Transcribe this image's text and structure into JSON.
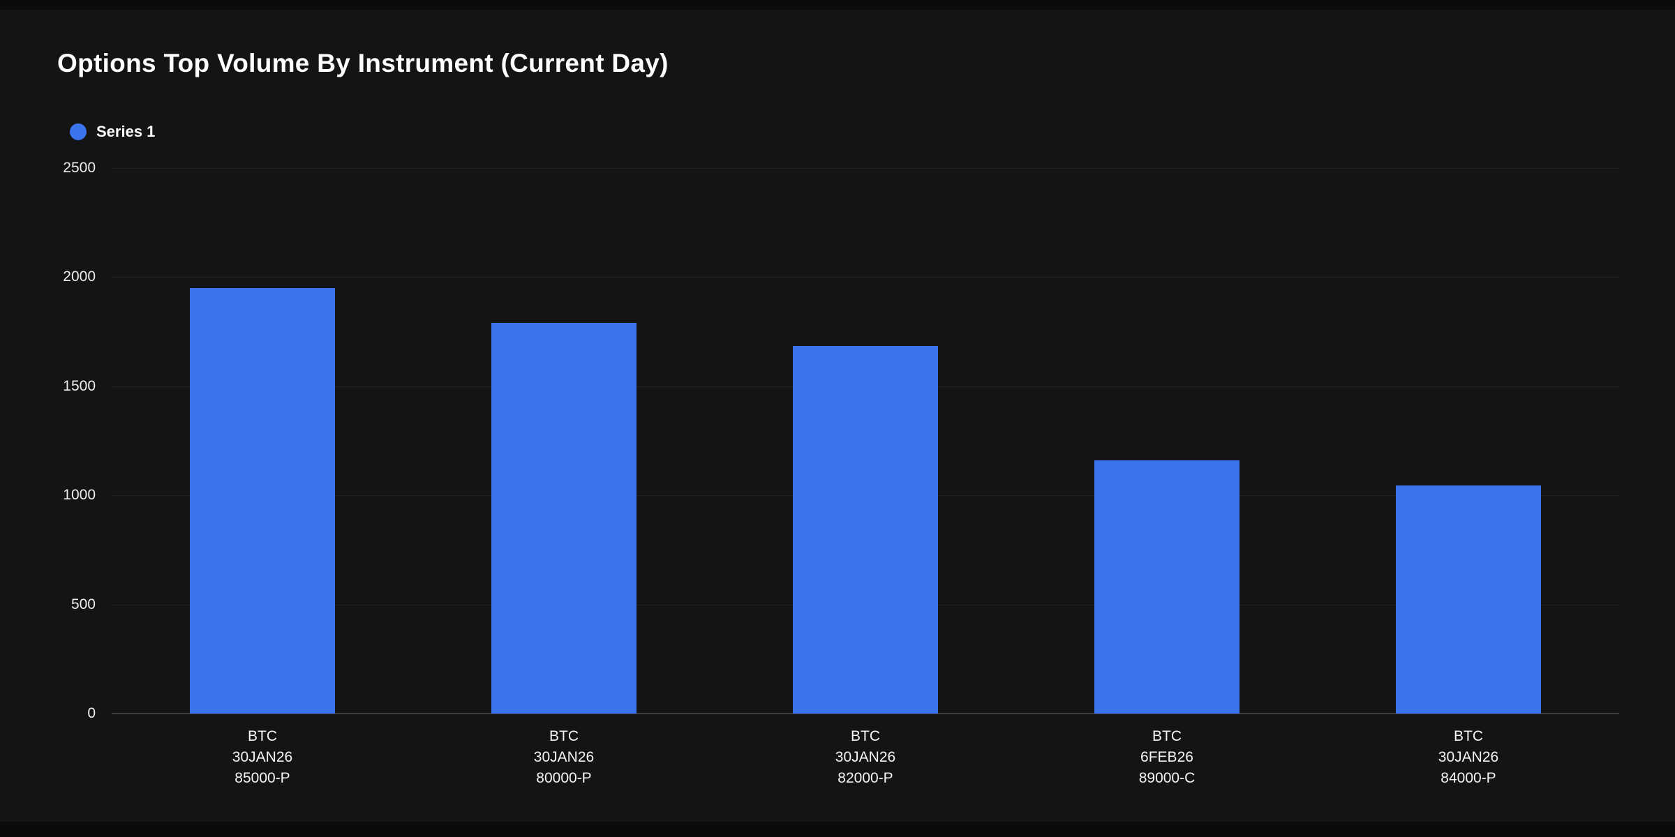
{
  "page": {
    "background": "#0b0b0b",
    "card_background": "#141414"
  },
  "header": {
    "title": "Options Top Volume By Instrument (Current Day)"
  },
  "legend": {
    "items": [
      {
        "label": "Series 1",
        "color": "#3a74ee"
      }
    ]
  },
  "chart_data": {
    "type": "bar",
    "title": "Options Top Volume By Instrument (Current Day)",
    "categories": [
      [
        "BTC",
        "30JAN26",
        "85000-P"
      ],
      [
        "BTC",
        "30JAN26",
        "80000-P"
      ],
      [
        "BTC",
        "30JAN26",
        "82000-P"
      ],
      [
        "BTC",
        "6FEB26",
        "89000-C"
      ],
      [
        "BTC",
        "30JAN26",
        "84000-P"
      ]
    ],
    "series": [
      {
        "name": "Series 1",
        "color": "#3a74ee",
        "values": [
          1950,
          1790,
          1685,
          1160,
          1045
        ]
      }
    ],
    "xlabel": "",
    "ylabel": "",
    "ylim": [
      0,
      2500
    ],
    "yticks": [
      0,
      500,
      1000,
      1500,
      2000,
      2500
    ],
    "grid": true,
    "legend_position": "top-left",
    "colors": {
      "bar": "#3a74ee",
      "grid": "#232323",
      "axis_line": "#3c3c3c",
      "tick_text": "#eeeeee",
      "title_text": "#ffffff",
      "background": "#141414"
    }
  }
}
